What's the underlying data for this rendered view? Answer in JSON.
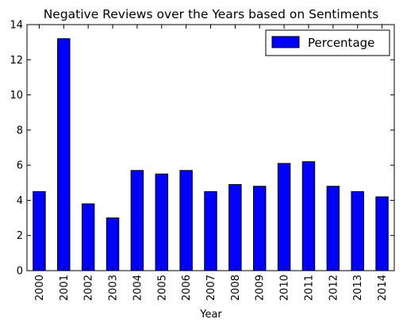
{
  "chart_data": {
    "type": "bar",
    "title": "Negative Reviews over the Years based on Sentiments",
    "xlabel": "Year",
    "ylabel": "",
    "categories": [
      "2000",
      "2001",
      "2002",
      "2003",
      "2004",
      "2005",
      "2006",
      "2007",
      "2008",
      "2009",
      "2010",
      "2011",
      "2012",
      "2013",
      "2014"
    ],
    "series": [
      {
        "name": "Percentage",
        "values": [
          4.5,
          13.2,
          3.8,
          3.0,
          5.7,
          5.5,
          5.7,
          4.5,
          4.9,
          4.8,
          6.1,
          6.2,
          4.8,
          4.5,
          4.2
        ]
      }
    ],
    "ylim": [
      0,
      14
    ],
    "yticks": [
      0,
      2,
      4,
      6,
      8,
      10,
      12,
      14
    ],
    "bar_color": "#0000ff",
    "grid": false,
    "legend_position": "top-right"
  }
}
